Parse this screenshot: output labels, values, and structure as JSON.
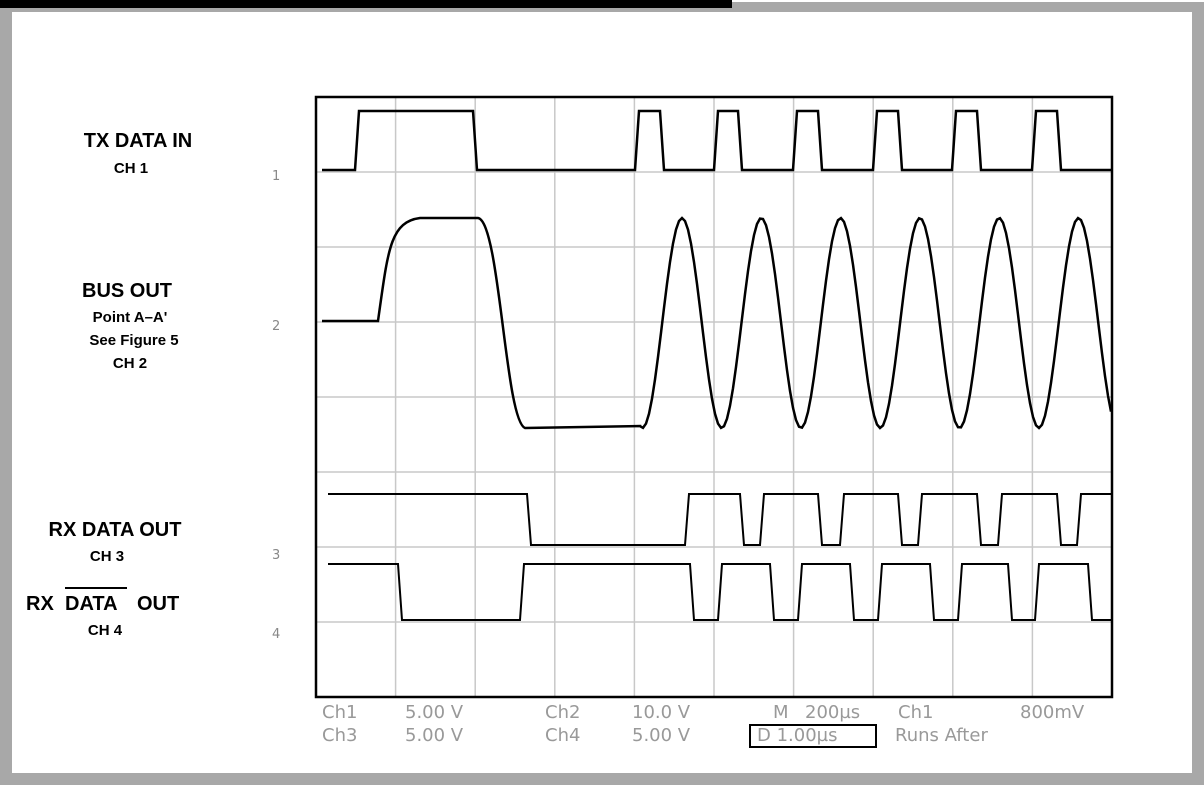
{
  "labels": {
    "ch1": {
      "title": "TX DATA IN",
      "channel": "CH 1"
    },
    "ch2": {
      "title": "BUS OUT",
      "lines": [
        "Point A–A'",
        "See Figure 5"
      ],
      "channel": "CH 2"
    },
    "ch3": {
      "title": "RX DATA OUT",
      "channel": "CH 3"
    },
    "ch4": {
      "prefix": "RX",
      "overlined": "DATA",
      "suffix": "OUT",
      "channel": "CH 4"
    }
  },
  "markers": [
    "1",
    "2",
    "3",
    "4"
  ],
  "readout": {
    "row1": [
      "Ch1",
      "5.00 V",
      "Ch2",
      "10.0 V",
      "M",
      "200µs",
      "Ch1",
      "800mV"
    ],
    "row2": [
      "Ch3",
      "5.00 V",
      "Ch4",
      "5.00 V",
      "D 1.00µs",
      "Runs After"
    ]
  }
}
